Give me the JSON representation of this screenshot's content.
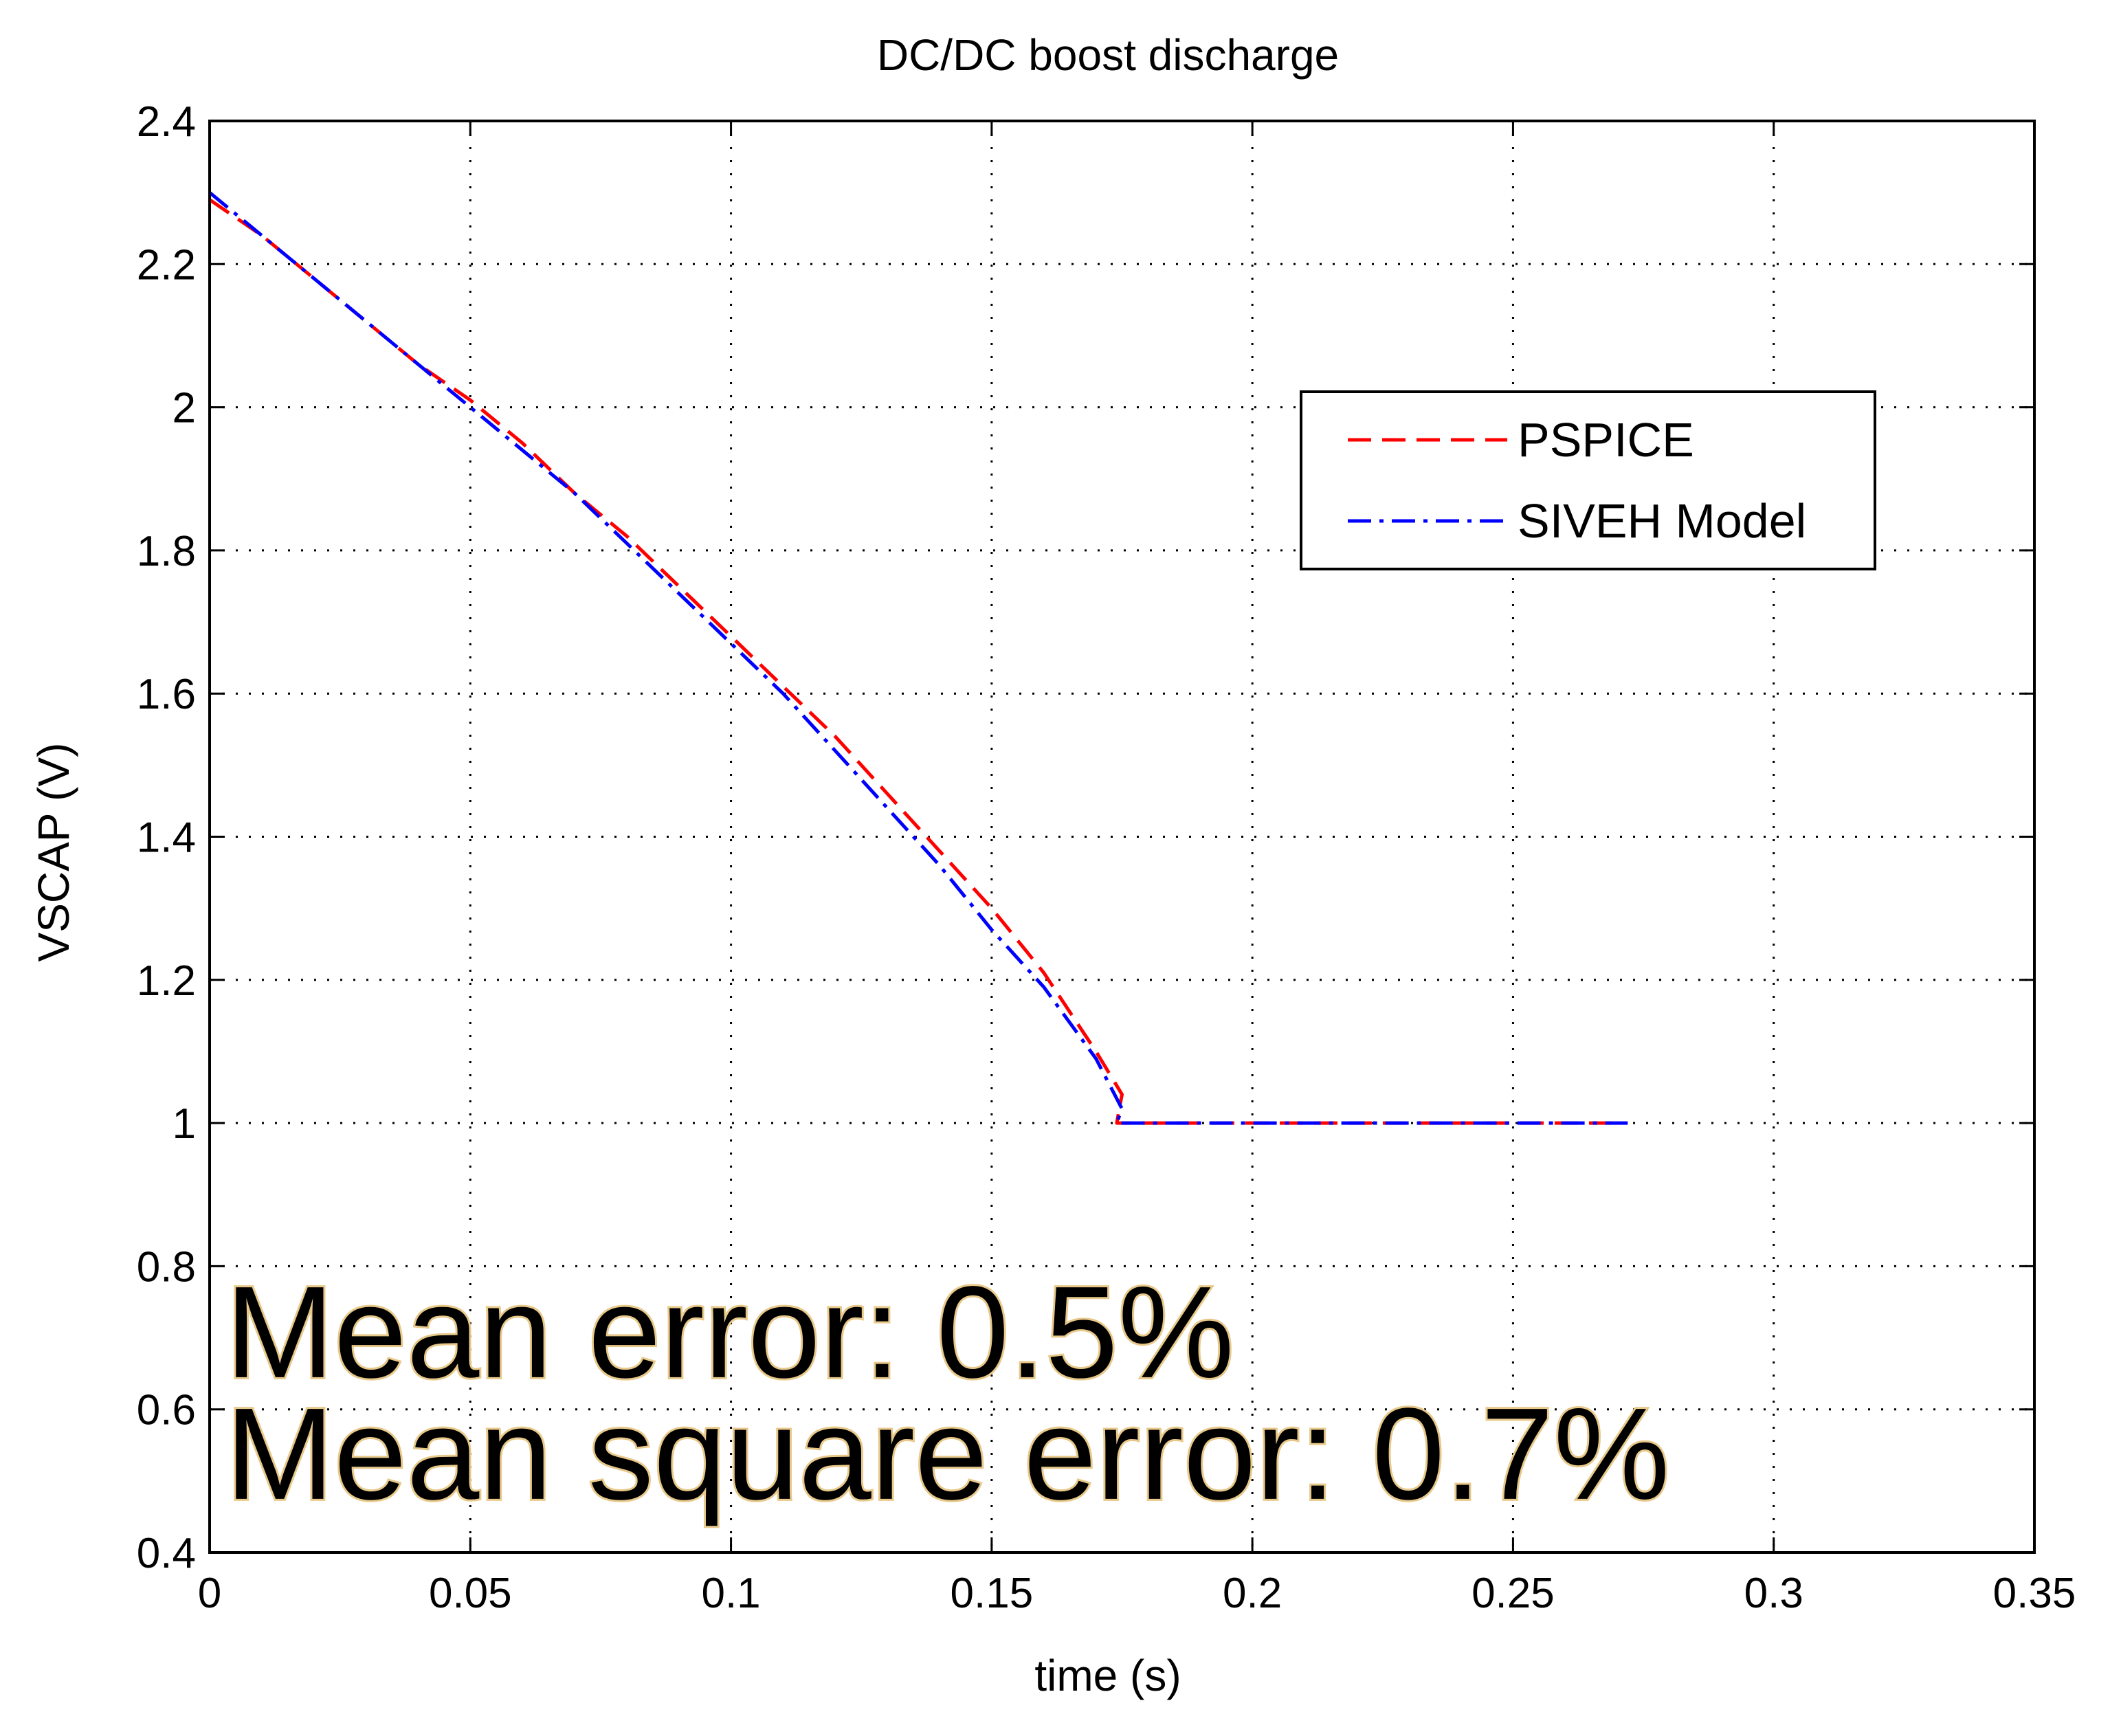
{
  "chart_data": {
    "type": "line",
    "title": "DC/DC boost discharge",
    "xlabel": "time (s)",
    "ylabel": "VSCAP (V)",
    "xlim": [
      0,
      0.35
    ],
    "ylim": [
      0.4,
      2.4
    ],
    "xticks": [
      0,
      0.05,
      0.1,
      0.15,
      0.2,
      0.25,
      0.3,
      0.35
    ],
    "xtick_labels": [
      "0",
      "0.05",
      "0.1",
      "0.15",
      "0.2",
      "0.25",
      "0.3",
      "0.35"
    ],
    "yticks": [
      0.4,
      0.6,
      0.8,
      1.0,
      1.2,
      1.4,
      1.6,
      1.8,
      2.0,
      2.2,
      2.4
    ],
    "ytick_labels": [
      "0.4",
      "0.6",
      "0.8",
      "1",
      "1.2",
      "1.4",
      "1.6",
      "1.8",
      "2",
      "2.2",
      "2.4"
    ],
    "grid": true,
    "legend_position": "top-right",
    "series": [
      {
        "name": "PSPICE",
        "color": "#ff0000",
        "style": "dashed",
        "x": [
          0,
          0.01,
          0.02,
          0.03,
          0.04,
          0.05,
          0.06,
          0.07,
          0.08,
          0.09,
          0.1,
          0.11,
          0.12,
          0.13,
          0.14,
          0.15,
          0.16,
          0.17,
          0.175,
          0.174,
          0.2,
          0.25,
          0.27
        ],
        "y": [
          2.29,
          2.24,
          2.18,
          2.12,
          2.06,
          2.01,
          1.95,
          1.88,
          1.82,
          1.75,
          1.68,
          1.61,
          1.54,
          1.46,
          1.38,
          1.3,
          1.21,
          1.1,
          1.04,
          1.0,
          1.0,
          1.0,
          1.0
        ]
      },
      {
        "name": "SIVEH Model",
        "color": "#0000ff",
        "style": "dashdot",
        "x": [
          0,
          0.01,
          0.02,
          0.03,
          0.04,
          0.05,
          0.06,
          0.07,
          0.08,
          0.09,
          0.1,
          0.11,
          0.12,
          0.13,
          0.14,
          0.15,
          0.16,
          0.17,
          0.175,
          0.174,
          0.2,
          0.25,
          0.272
        ],
        "y": [
          2.3,
          2.24,
          2.18,
          2.12,
          2.06,
          2.0,
          1.94,
          1.88,
          1.81,
          1.74,
          1.67,
          1.6,
          1.52,
          1.44,
          1.36,
          1.27,
          1.19,
          1.09,
          1.02,
          1.0,
          1.0,
          1.0,
          1.0
        ]
      }
    ],
    "annotations": [
      "Mean error: 0.5%",
      "Mean square error: 0.7%"
    ]
  }
}
